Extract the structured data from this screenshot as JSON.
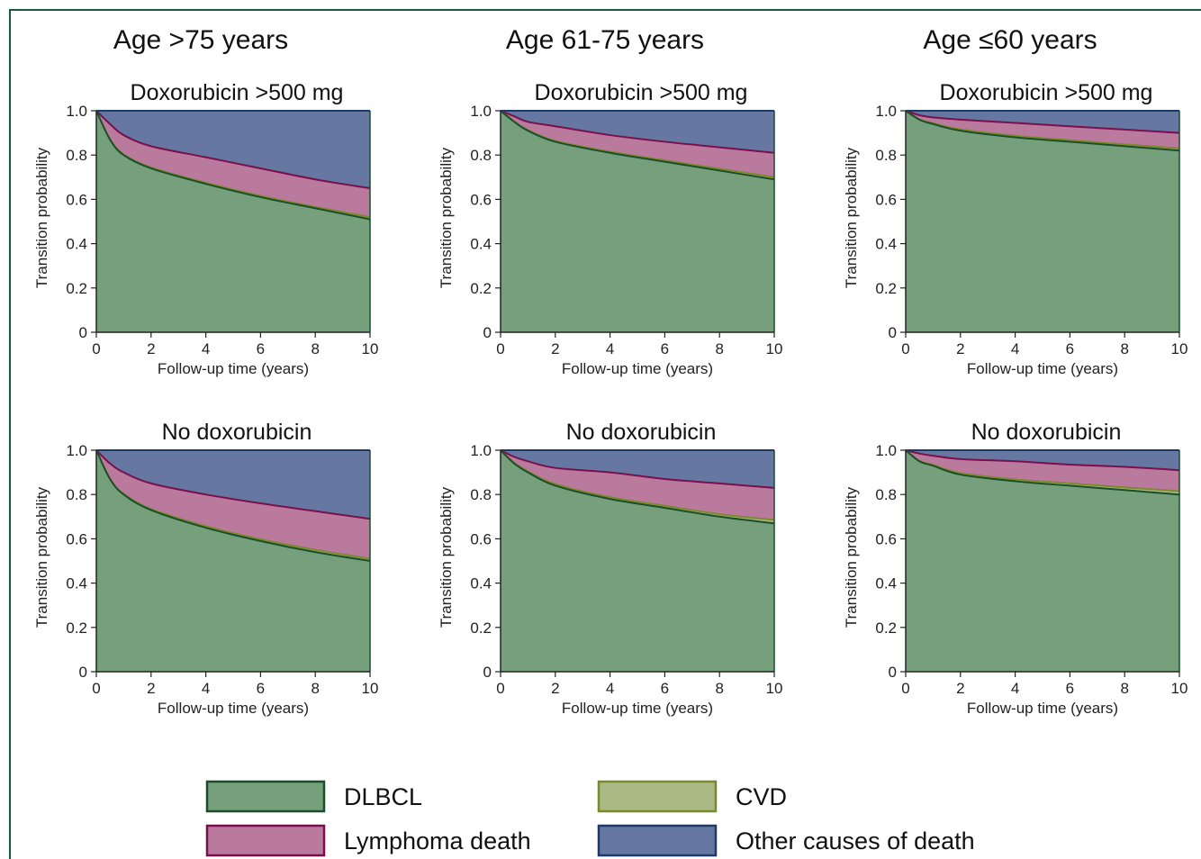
{
  "column_titles": [
    "Age >75 years",
    "Age 61-75 years",
    "Age ≤60 years"
  ],
  "row_titles": [
    "Doxorubicin >500 mg",
    "No doxorubicin"
  ],
  "colors": {
    "dlbcl": "#76a07b",
    "dlbcl_stroke": "#1a4d2a",
    "cvd": "#abb985",
    "cvd_stroke": "#7a8a2a",
    "lymphoma": "#b97a9d",
    "lymphoma_stroke": "#7a0f4e",
    "other": "#6677a1",
    "other_stroke": "#1d3a66",
    "frame": "#1a5a3a"
  },
  "legend": [
    {
      "key": "dlbcl",
      "label": "DLBCL"
    },
    {
      "key": "cvd",
      "label": "CVD"
    },
    {
      "key": "lymphoma",
      "label": "Lymphoma death"
    },
    {
      "key": "other",
      "label": "Other causes of death"
    }
  ],
  "chart_data": [
    {
      "type": "area",
      "column": "Age >75 years",
      "title": "Doxorubicin >500 mg",
      "xlabel": "Follow-up time (years)",
      "ylabel": "Transition probability",
      "xlim": [
        0,
        10
      ],
      "ylim": [
        0,
        1
      ],
      "x_ticks": [
        "0",
        "2",
        "4",
        "6",
        "8",
        "10"
      ],
      "y_ticks": [
        "0",
        "0.2",
        "0.4",
        "0.6",
        "0.8",
        "1.0"
      ],
      "x": [
        0,
        0.5,
        1,
        2,
        4,
        6,
        8,
        10
      ],
      "series": [
        {
          "name": "DLBCL",
          "values": [
            1.0,
            0.87,
            0.8,
            0.74,
            0.67,
            0.61,
            0.56,
            0.51
          ]
        },
        {
          "name": "CVD",
          "values": [
            1.0,
            0.872,
            0.803,
            0.744,
            0.675,
            0.616,
            0.566,
            0.52
          ]
        },
        {
          "name": "Lymphoma death",
          "values": [
            1.0,
            0.94,
            0.89,
            0.84,
            0.79,
            0.74,
            0.69,
            0.65
          ]
        },
        {
          "name": "Other causes of death",
          "values": [
            1.0,
            1.0,
            1.0,
            1.0,
            1.0,
            1.0,
            1.0,
            1.0
          ]
        }
      ]
    },
    {
      "type": "area",
      "column": "Age 61-75 years",
      "title": "Doxorubicin >500 mg",
      "xlabel": "Follow-up time (years)",
      "ylabel": "Transition probability",
      "xlim": [
        0,
        10
      ],
      "ylim": [
        0,
        1
      ],
      "x_ticks": [
        "0",
        "2",
        "4",
        "6",
        "8",
        "10"
      ],
      "y_ticks": [
        "0",
        "0.2",
        "0.4",
        "0.6",
        "0.8",
        "1.0"
      ],
      "x": [
        0,
        0.5,
        1,
        2,
        4,
        6,
        8,
        10
      ],
      "series": [
        {
          "name": "DLBCL",
          "values": [
            1.0,
            0.95,
            0.91,
            0.86,
            0.81,
            0.77,
            0.73,
            0.69
          ]
        },
        {
          "name": "CVD",
          "values": [
            1.0,
            0.952,
            0.913,
            0.864,
            0.815,
            0.776,
            0.738,
            0.7
          ]
        },
        {
          "name": "Lymphoma death",
          "values": [
            1.0,
            0.975,
            0.95,
            0.93,
            0.89,
            0.86,
            0.835,
            0.81
          ]
        },
        {
          "name": "Other causes of death",
          "values": [
            1.0,
            1.0,
            1.0,
            1.0,
            1.0,
            1.0,
            1.0,
            1.0
          ]
        }
      ]
    },
    {
      "type": "area",
      "column": "Age ≤60 years",
      "title": "Doxorubicin >500 mg",
      "xlabel": "Follow-up time (years)",
      "ylabel": "Transition probability",
      "xlim": [
        0,
        10
      ],
      "ylim": [
        0,
        1
      ],
      "x_ticks": [
        "0",
        "2",
        "4",
        "6",
        "8",
        "10"
      ],
      "y_ticks": [
        "0",
        "0.2",
        "0.4",
        "0.6",
        "0.8",
        "1.0"
      ],
      "x": [
        0,
        0.5,
        1,
        2,
        4,
        6,
        8,
        10
      ],
      "series": [
        {
          "name": "DLBCL",
          "values": [
            1.0,
            0.96,
            0.94,
            0.91,
            0.88,
            0.86,
            0.84,
            0.82
          ]
        },
        {
          "name": "CVD",
          "values": [
            1.0,
            0.962,
            0.944,
            0.916,
            0.887,
            0.867,
            0.848,
            0.83
          ]
        },
        {
          "name": "Lymphoma death",
          "values": [
            1.0,
            0.98,
            0.97,
            0.96,
            0.945,
            0.93,
            0.915,
            0.9
          ]
        },
        {
          "name": "Other causes of death",
          "values": [
            1.0,
            1.0,
            1.0,
            1.0,
            1.0,
            1.0,
            1.0,
            1.0
          ]
        }
      ]
    },
    {
      "type": "area",
      "column": "Age >75 years",
      "title": "No doxorubicin",
      "xlabel": "Follow-up time (years)",
      "ylabel": "Transition probability",
      "xlim": [
        0,
        10
      ],
      "ylim": [
        0,
        1
      ],
      "x_ticks": [
        "0",
        "2",
        "4",
        "6",
        "8",
        "10"
      ],
      "y_ticks": [
        "0",
        "0.2",
        "0.4",
        "0.6",
        "0.8",
        "1.0"
      ],
      "x": [
        0,
        0.5,
        1,
        2,
        4,
        6,
        8,
        10
      ],
      "series": [
        {
          "name": "DLBCL",
          "values": [
            1.0,
            0.87,
            0.8,
            0.73,
            0.65,
            0.59,
            0.54,
            0.5
          ]
        },
        {
          "name": "CVD",
          "values": [
            1.0,
            0.872,
            0.803,
            0.735,
            0.657,
            0.598,
            0.55,
            0.51
          ]
        },
        {
          "name": "Lymphoma death",
          "values": [
            1.0,
            0.94,
            0.9,
            0.85,
            0.8,
            0.76,
            0.725,
            0.69
          ]
        },
        {
          "name": "Other causes of death",
          "values": [
            1.0,
            1.0,
            1.0,
            1.0,
            1.0,
            1.0,
            1.0,
            1.0
          ]
        }
      ]
    },
    {
      "type": "area",
      "column": "Age 61-75 years",
      "title": "No doxorubicin",
      "xlabel": "Follow-up time (years)",
      "ylabel": "Transition probability",
      "xlim": [
        0,
        10
      ],
      "ylim": [
        0,
        1
      ],
      "x_ticks": [
        "0",
        "2",
        "4",
        "6",
        "8",
        "10"
      ],
      "y_ticks": [
        "0",
        "0.2",
        "0.4",
        "0.6",
        "0.8",
        "1.0"
      ],
      "x": [
        0,
        0.5,
        1,
        2,
        4,
        6,
        8,
        10
      ],
      "series": [
        {
          "name": "DLBCL",
          "values": [
            1.0,
            0.94,
            0.9,
            0.84,
            0.78,
            0.74,
            0.7,
            0.67
          ]
        },
        {
          "name": "CVD",
          "values": [
            1.0,
            0.943,
            0.905,
            0.847,
            0.788,
            0.749,
            0.711,
            0.685
          ]
        },
        {
          "name": "Lymphoma death",
          "values": [
            1.0,
            0.97,
            0.95,
            0.92,
            0.9,
            0.87,
            0.85,
            0.83
          ]
        },
        {
          "name": "Other causes of death",
          "values": [
            1.0,
            1.0,
            1.0,
            1.0,
            1.0,
            1.0,
            1.0,
            1.0
          ]
        }
      ]
    },
    {
      "type": "area",
      "column": "Age ≤60 years",
      "title": "No doxorubicin",
      "xlabel": "Follow-up time (years)",
      "ylabel": "Transition probability",
      "xlim": [
        0,
        10
      ],
      "ylim": [
        0,
        1
      ],
      "x_ticks": [
        "0",
        "2",
        "4",
        "6",
        "8",
        "10"
      ],
      "y_ticks": [
        "0",
        "0.2",
        "0.4",
        "0.6",
        "0.8",
        "1.0"
      ],
      "x": [
        0,
        0.5,
        1,
        2,
        4,
        6,
        8,
        10
      ],
      "series": [
        {
          "name": "DLBCL",
          "values": [
            1.0,
            0.95,
            0.93,
            0.89,
            0.86,
            0.84,
            0.82,
            0.8
          ]
        },
        {
          "name": "CVD",
          "values": [
            1.0,
            0.952,
            0.934,
            0.897,
            0.868,
            0.85,
            0.832,
            0.815
          ]
        },
        {
          "name": "Lymphoma death",
          "values": [
            1.0,
            0.985,
            0.975,
            0.96,
            0.95,
            0.935,
            0.925,
            0.91
          ]
        },
        {
          "name": "Other causes of death",
          "values": [
            1.0,
            1.0,
            1.0,
            1.0,
            1.0,
            1.0,
            1.0,
            1.0
          ]
        }
      ]
    }
  ]
}
